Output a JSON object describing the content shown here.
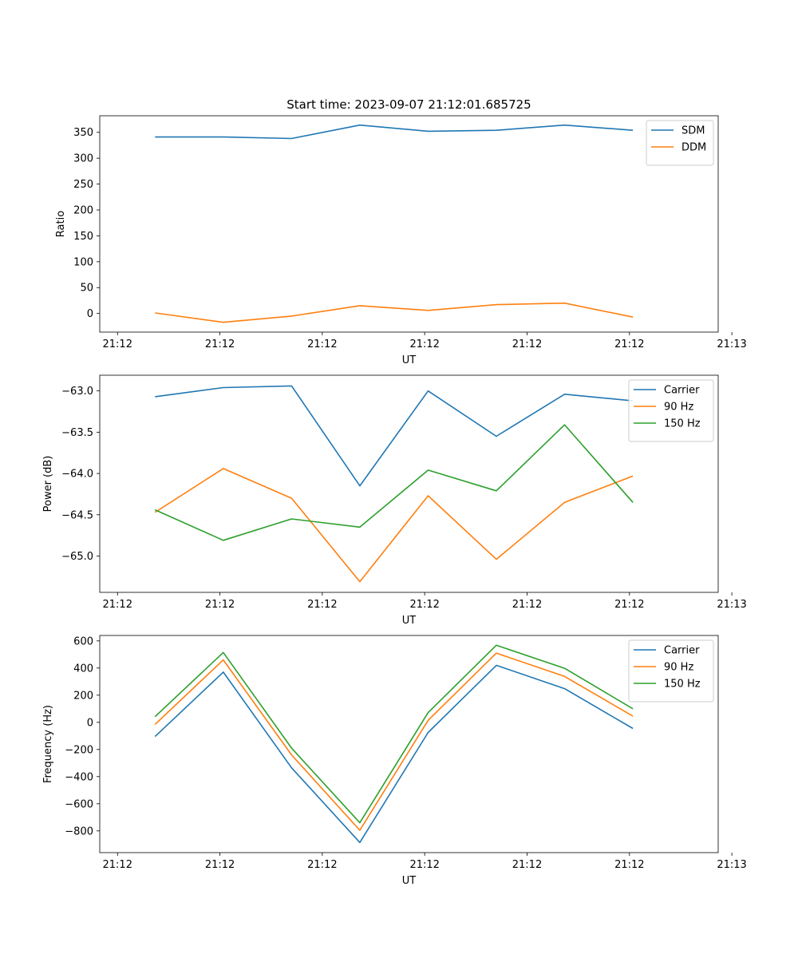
{
  "chart_data": [
    {
      "type": "line",
      "title": "Start time: 2023-09-07 21:12:01.685725",
      "xlabel": "UT",
      "ylabel": "Ratio",
      "x": [
        1,
        2,
        3,
        4,
        5,
        6,
        7,
        8
      ],
      "x_range": [
        0.19,
        9.25
      ],
      "x_ticks": [
        {
          "value": 0.45,
          "label": "21:12"
        },
        {
          "value": 1.95,
          "label": "21:12"
        },
        {
          "value": 3.45,
          "label": "21:12"
        },
        {
          "value": 4.95,
          "label": "21:12"
        },
        {
          "value": 6.45,
          "label": "21:12"
        },
        {
          "value": 7.95,
          "label": "21:12"
        },
        {
          "value": 9.45,
          "label": "21:13"
        }
      ],
      "ylim": [
        -36,
        382
      ],
      "y_ticks": [
        {
          "value": 0,
          "label": "0"
        },
        {
          "value": 50,
          "label": "50"
        },
        {
          "value": 100,
          "label": "100"
        },
        {
          "value": 150,
          "label": "150"
        },
        {
          "value": 200,
          "label": "200"
        },
        {
          "value": 250,
          "label": "250"
        },
        {
          "value": 300,
          "label": "300"
        },
        {
          "value": 350,
          "label": "350"
        }
      ],
      "legend_position": "top-right",
      "series": [
        {
          "name": "SDM",
          "color": "#1f77b4",
          "values": [
            341,
            341,
            338,
            364,
            352,
            354,
            364,
            354
          ]
        },
        {
          "name": "DDM",
          "color": "#ff7f0e",
          "values": [
            1,
            -17,
            -5,
            15,
            6,
            17,
            20,
            -7
          ]
        }
      ]
    },
    {
      "type": "line",
      "title": "",
      "xlabel": "UT",
      "ylabel": "Power (dB)",
      "x": [
        1,
        2,
        3,
        4,
        5,
        6,
        7,
        8
      ],
      "x_range": [
        0.19,
        9.25
      ],
      "x_ticks": [
        {
          "value": 0.45,
          "label": "21:12"
        },
        {
          "value": 1.95,
          "label": "21:12"
        },
        {
          "value": 3.45,
          "label": "21:12"
        },
        {
          "value": 4.95,
          "label": "21:12"
        },
        {
          "value": 6.45,
          "label": "21:12"
        },
        {
          "value": 7.95,
          "label": "21:12"
        },
        {
          "value": 9.45,
          "label": "21:13"
        }
      ],
      "ylim": [
        -65.44,
        -62.81
      ],
      "y_ticks": [
        {
          "value": -65.0,
          "label": "−65.0"
        },
        {
          "value": -64.5,
          "label": "−64.5"
        },
        {
          "value": -64.0,
          "label": "−64.0"
        },
        {
          "value": -63.5,
          "label": "−63.5"
        },
        {
          "value": -63.0,
          "label": "−63.0"
        }
      ],
      "legend_position": "top-right",
      "series": [
        {
          "name": "Carrier",
          "color": "#1f77b4",
          "values": [
            -63.07,
            -62.96,
            -62.94,
            -64.15,
            -63.0,
            -63.55,
            -63.04,
            -63.12
          ]
        },
        {
          "name": "90 Hz",
          "color": "#ff7f0e",
          "values": [
            -64.47,
            -63.94,
            -64.3,
            -65.31,
            -64.27,
            -65.04,
            -64.35,
            -64.03
          ]
        },
        {
          "name": "150 Hz",
          "color": "#2ca02c",
          "values": [
            -64.44,
            -64.81,
            -64.55,
            -64.65,
            -63.96,
            -64.21,
            -63.41,
            -64.35
          ]
        }
      ]
    },
    {
      "type": "line",
      "title": "",
      "xlabel": "UT",
      "ylabel": "Frequency (Hz)",
      "x": [
        1,
        2,
        3,
        4,
        5,
        6,
        7,
        8
      ],
      "x_range": [
        0.19,
        9.25
      ],
      "x_ticks": [
        {
          "value": 0.45,
          "label": "21:12"
        },
        {
          "value": 1.95,
          "label": "21:12"
        },
        {
          "value": 3.45,
          "label": "21:12"
        },
        {
          "value": 4.95,
          "label": "21:12"
        },
        {
          "value": 6.45,
          "label": "21:12"
        },
        {
          "value": 7.95,
          "label": "21:12"
        },
        {
          "value": 9.45,
          "label": "21:13"
        }
      ],
      "ylim": [
        -960,
        640
      ],
      "y_ticks": [
        {
          "value": -800,
          "label": "−800"
        },
        {
          "value": -600,
          "label": "−600"
        },
        {
          "value": -400,
          "label": "−400"
        },
        {
          "value": -200,
          "label": "−200"
        },
        {
          "value": 0,
          "label": "0"
        },
        {
          "value": 200,
          "label": "200"
        },
        {
          "value": 400,
          "label": "400"
        },
        {
          "value": 600,
          "label": "600"
        }
      ],
      "legend_position": "top-right",
      "series": [
        {
          "name": "Carrier",
          "color": "#1f77b4",
          "values": [
            -105,
            370,
            -335,
            -885,
            -75,
            420,
            248,
            -45
          ]
        },
        {
          "name": "90 Hz",
          "color": "#ff7f0e",
          "values": [
            -15,
            460,
            -240,
            -795,
            15,
            510,
            338,
            45
          ]
        },
        {
          "name": "150 Hz",
          "color": "#2ca02c",
          "values": [
            42,
            515,
            -190,
            -740,
            72,
            568,
            398,
            100
          ]
        }
      ]
    }
  ]
}
